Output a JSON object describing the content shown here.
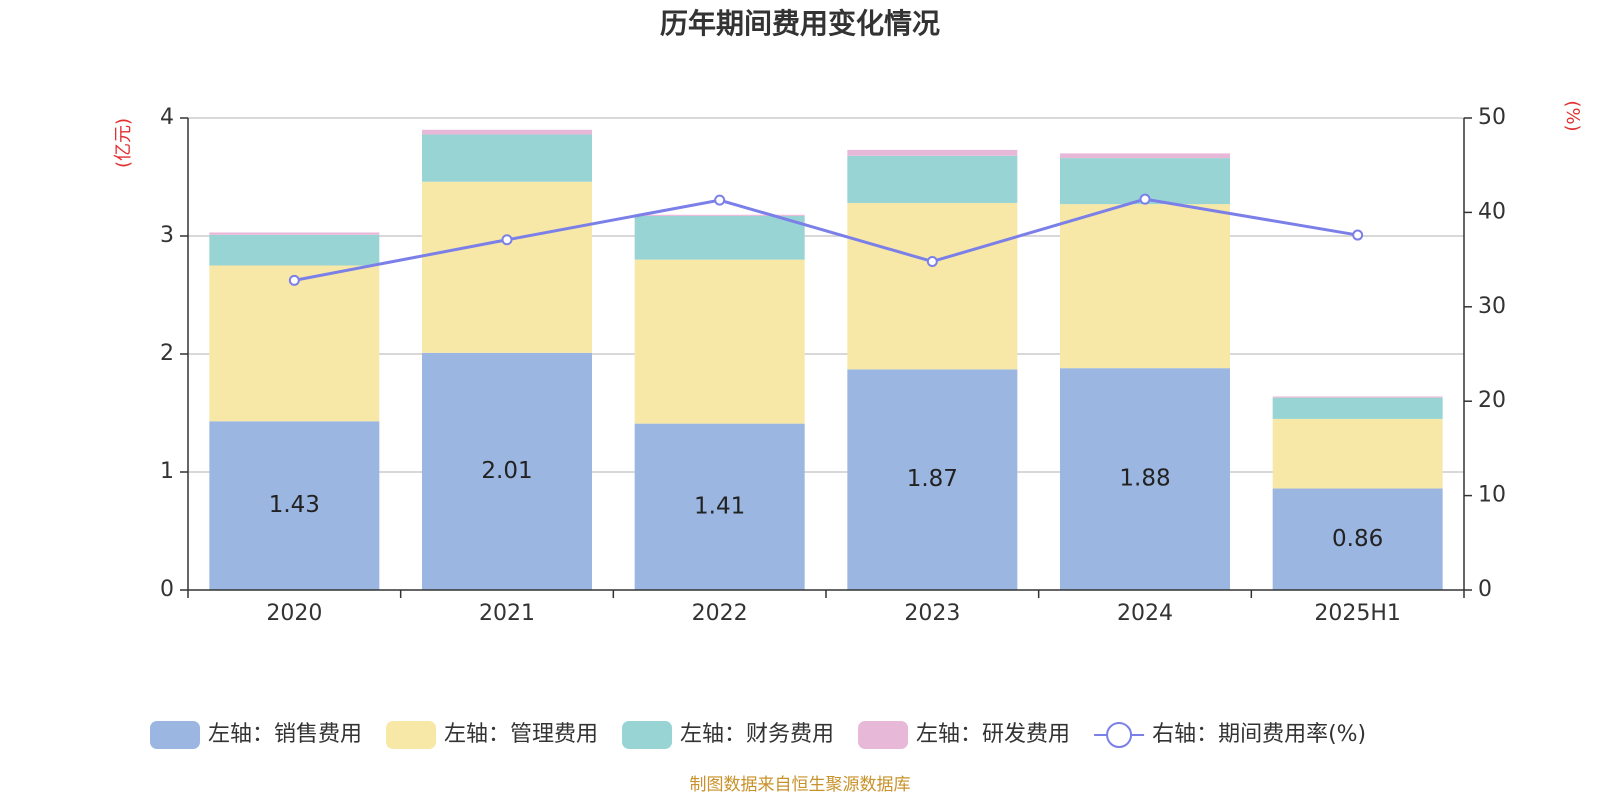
{
  "chart_data": {
    "type": "bar",
    "title": "历年期间费用变化情况",
    "y_left_label": "(亿元)",
    "y_right_label": "(%)",
    "categories": [
      "2020",
      "2021",
      "2022",
      "2023",
      "2024",
      "2025H1"
    ],
    "y_left_range": [
      0,
      4
    ],
    "y_left_ticks": [
      "0",
      "1",
      "2",
      "3",
      "4"
    ],
    "y_right_range": [
      0,
      50
    ],
    "y_right_ticks": [
      "0",
      "10",
      "20",
      "30",
      "40",
      "50"
    ],
    "grid": true,
    "series": [
      {
        "name": "左轴：销售费用",
        "type": "bar",
        "axis": "left",
        "color": "#9BB7E1",
        "values": [
          1.43,
          2.01,
          1.41,
          1.87,
          1.88,
          0.86
        ],
        "labels": [
          "1.43",
          "2.01",
          "1.41",
          "1.87",
          "1.88",
          "0.86"
        ]
      },
      {
        "name": "左轴：管理费用",
        "type": "bar",
        "axis": "left",
        "color": "#F8E8A8",
        "values": [
          1.32,
          1.45,
          1.39,
          1.41,
          1.39,
          0.59
        ]
      },
      {
        "name": "左轴：财务费用",
        "type": "bar",
        "axis": "left",
        "color": "#98D4D4",
        "values": [
          0.26,
          0.4,
          0.37,
          0.4,
          0.39,
          0.18
        ]
      },
      {
        "name": "左轴：研发费用",
        "type": "bar",
        "axis": "left",
        "color": "#E8B8D8",
        "values": [
          0.02,
          0.04,
          0.01,
          0.05,
          0.04,
          0.01
        ]
      },
      {
        "name": "右轴：期间费用率(%)",
        "type": "line",
        "axis": "right",
        "color": "#7B7FE8",
        "values": [
          32.8,
          37.1,
          41.3,
          34.8,
          41.4,
          37.6
        ]
      }
    ],
    "legend_position": "bottom",
    "source": "制图数据来自恒生聚源数据库",
    "colors": {
      "title": "#333333",
      "axis_unit": "#e03030",
      "source": "#c8922a",
      "grid": "#cccccc",
      "axis": "#333333"
    }
  }
}
